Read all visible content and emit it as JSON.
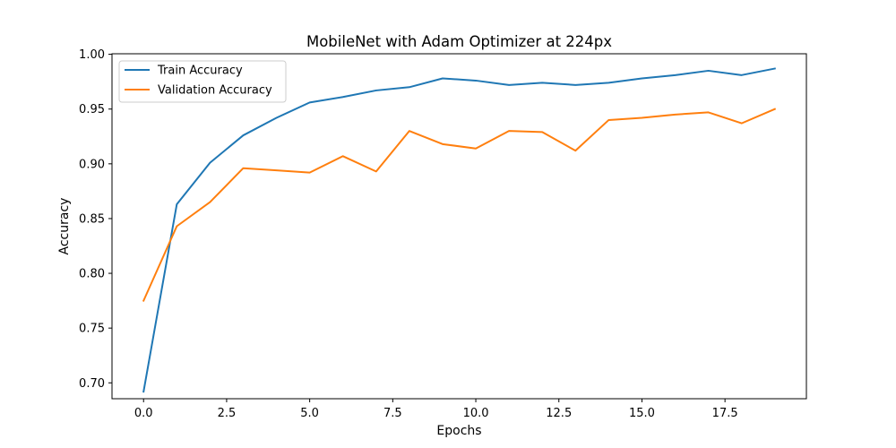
{
  "chart_data": {
    "type": "line",
    "title": "MobileNet with Adam Optimizer at 224px",
    "xlabel": "Epochs",
    "ylabel": "Accuracy",
    "xlim": [
      -0.95,
      19.95
    ],
    "ylim": [
      0.6855,
      1.0005
    ],
    "xticks": [
      0.0,
      2.5,
      5.0,
      7.5,
      10.0,
      12.5,
      15.0,
      17.5
    ],
    "xtick_labels": [
      "0.0",
      "2.5",
      "5.0",
      "7.5",
      "10.0",
      "12.5",
      "15.0",
      "17.5"
    ],
    "yticks": [
      0.7,
      0.75,
      0.8,
      0.85,
      0.9,
      0.95,
      1.0
    ],
    "ytick_labels": [
      "0.70",
      "0.75",
      "0.80",
      "0.85",
      "0.90",
      "0.95",
      "1.00"
    ],
    "grid": false,
    "legend_position": "top-left",
    "x": [
      0,
      1,
      2,
      3,
      4,
      5,
      6,
      7,
      8,
      9,
      10,
      11,
      12,
      13,
      14,
      15,
      16,
      17,
      18,
      19
    ],
    "series": [
      {
        "name": "Train Accuracy",
        "color": "#1f77b4",
        "values": [
          0.692,
          0.863,
          0.901,
          0.926,
          0.942,
          0.956,
          0.961,
          0.967,
          0.97,
          0.978,
          0.976,
          0.972,
          0.974,
          0.972,
          0.974,
          0.978,
          0.981,
          0.985,
          0.981,
          0.987
        ]
      },
      {
        "name": "Validation Accuracy",
        "color": "#ff7f0e",
        "values": [
          0.775,
          0.843,
          0.865,
          0.896,
          0.894,
          0.892,
          0.907,
          0.893,
          0.93,
          0.918,
          0.914,
          0.93,
          0.929,
          0.912,
          0.94,
          0.942,
          0.945,
          0.947,
          0.937,
          0.95
        ]
      }
    ]
  }
}
